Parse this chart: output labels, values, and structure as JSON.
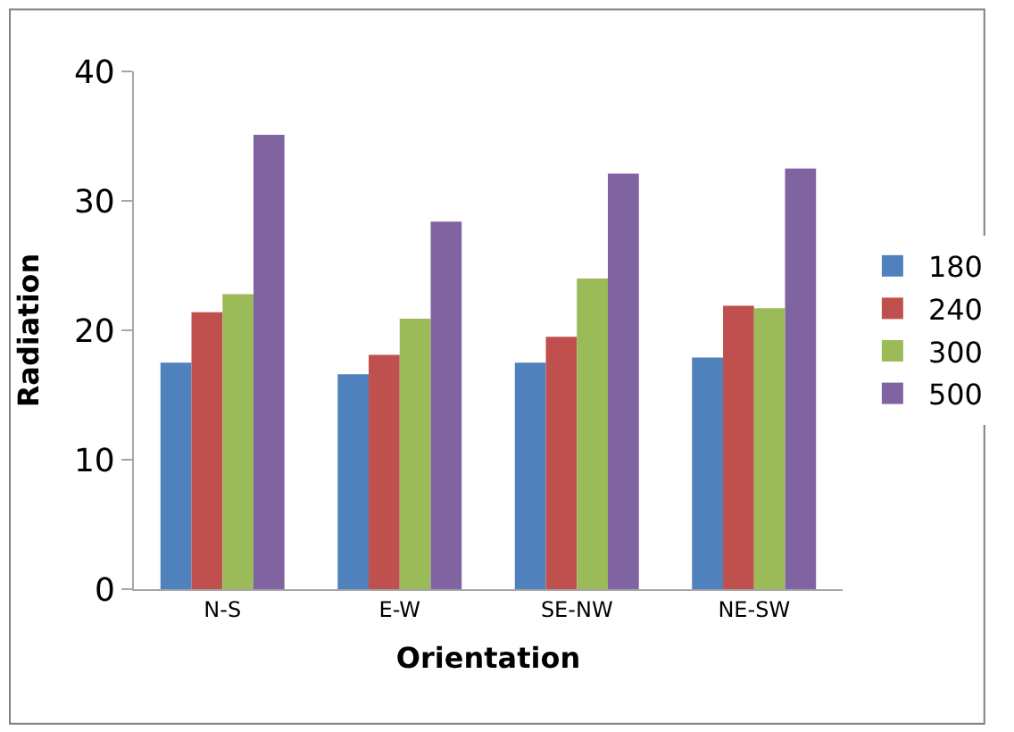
{
  "chart_data": {
    "type": "bar",
    "xlabel": "Orientation",
    "ylabel": "Radiation",
    "categories": [
      "N-S",
      "E-W",
      "SE-NW",
      "NE-SW"
    ],
    "series": [
      {
        "name": "180",
        "color": "#4f81bd",
        "values": [
          17.5,
          16.6,
          17.5,
          17.9
        ]
      },
      {
        "name": "240",
        "color": "#c0504d",
        "values": [
          21.4,
          18.1,
          19.5,
          21.9
        ]
      },
      {
        "name": "300",
        "color": "#9bbb59",
        "values": [
          22.8,
          20.9,
          24.0,
          21.7
        ]
      },
      {
        "name": "500",
        "color": "#8064a2",
        "values": [
          35.1,
          28.4,
          32.1,
          32.5
        ]
      }
    ],
    "ylim": [
      0,
      40
    ],
    "yticks": [
      0,
      10,
      20,
      30,
      40
    ],
    "legend": "right"
  }
}
